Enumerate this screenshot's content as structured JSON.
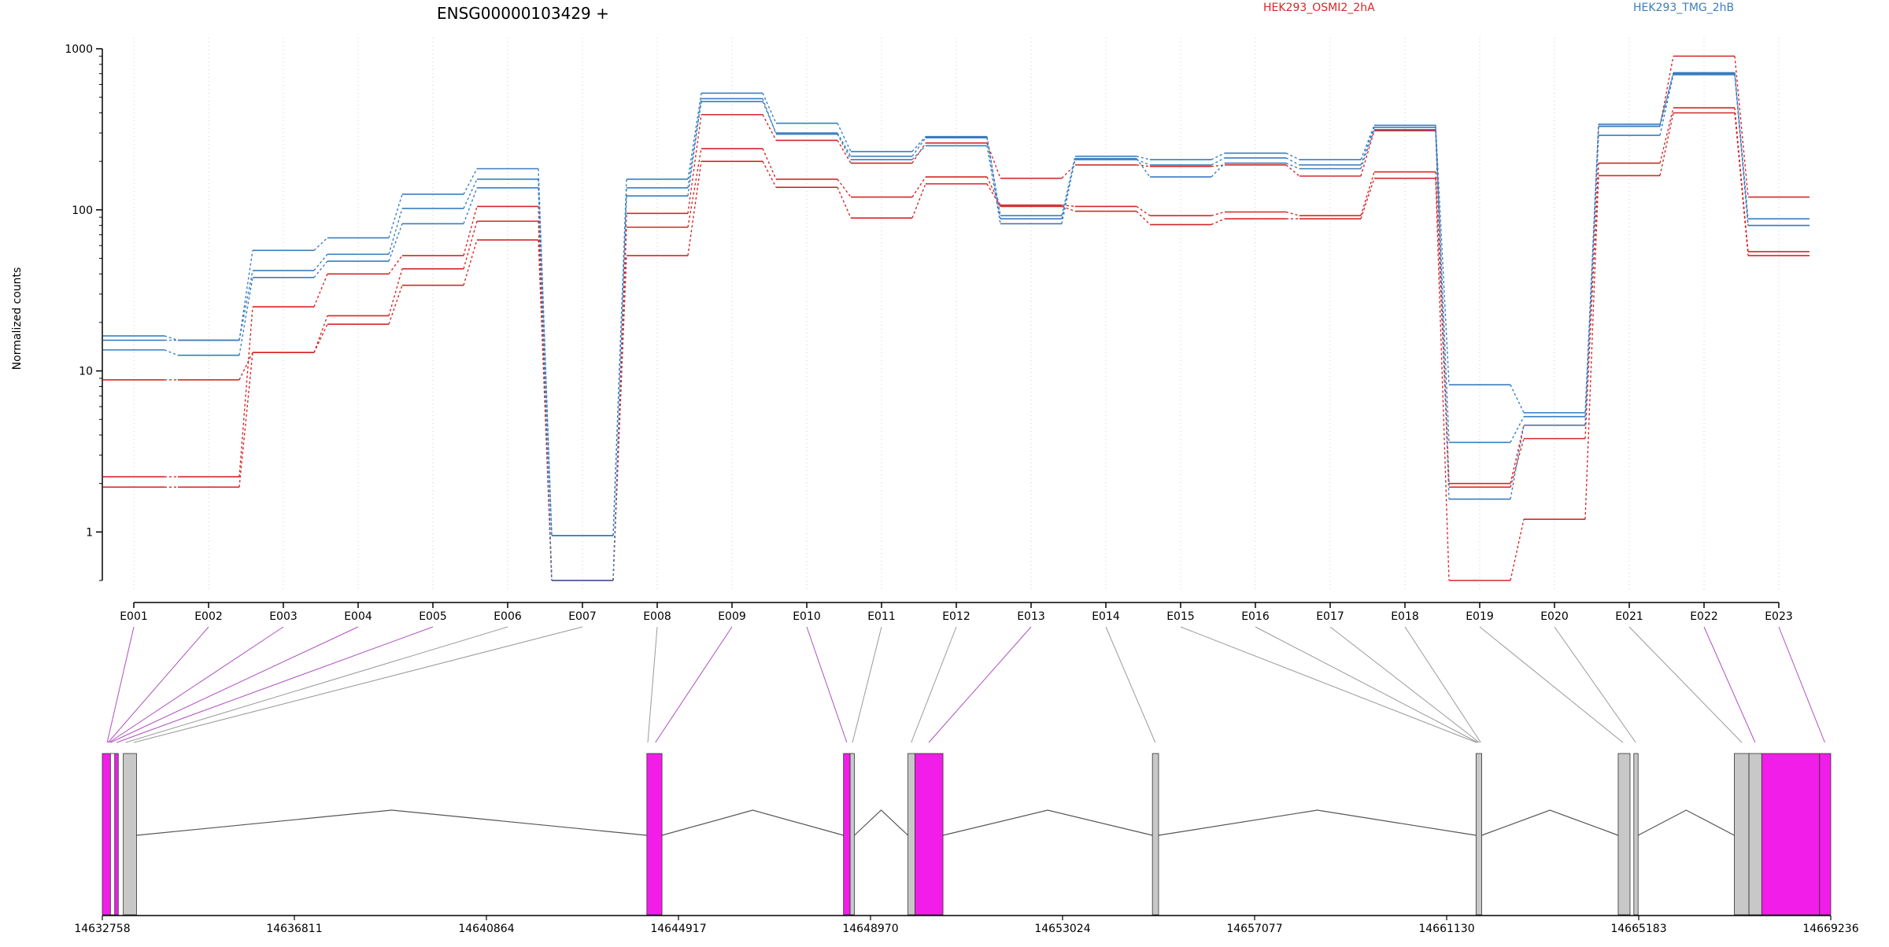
{
  "chart_data": {
    "type": "line",
    "title": "ENSG00000103429 +",
    "ylabel": "Normalized counts",
    "xlabel": "",
    "y_scale": "log",
    "ylim": [
      0.5,
      1000
    ],
    "y_ticks": [
      "1",
      "10",
      "100",
      "1000"
    ],
    "grid": "vertical dotted",
    "legend_position": "top-right",
    "legend": [
      {
        "name": "HEK293_OSMI2_2hA",
        "color": "#d62728"
      },
      {
        "name": "HEK293_TMG_2hB",
        "color": "#3a7dbf"
      }
    ],
    "categories": [
      "E001",
      "E002",
      "E003",
      "E004",
      "E005",
      "E006",
      "E007",
      "E008",
      "E009",
      "E010",
      "E011",
      "E012",
      "E013",
      "E014",
      "E015",
      "E016",
      "E017",
      "E018",
      "E019",
      "E020",
      "E021",
      "E022",
      "E023"
    ],
    "series": [
      {
        "group": "red",
        "values": [
          8.8,
          8.8,
          13,
          22,
          43,
          85,
          0.5,
          78,
          240,
          155,
          120,
          160,
          107,
          105,
          92,
          97,
          92,
          172,
          1.9,
          3.8,
          195,
          430,
          55
        ]
      },
      {
        "group": "red",
        "values": [
          2.2,
          2.2,
          25,
          40,
          52,
          105,
          0.5,
          95,
          390,
          270,
          195,
          260,
          157,
          190,
          186,
          190,
          162,
          310,
          2.0,
          4.6,
          330,
          900,
          120
        ]
      },
      {
        "group": "red",
        "values": [
          1.9,
          1.9,
          13,
          19.5,
          34,
          65,
          0.5,
          52,
          200,
          138,
          89,
          145,
          105,
          98,
          81,
          88,
          88,
          157,
          0.5,
          1.2,
          163,
          400,
          52
        ]
      },
      {
        "group": "blue",
        "values": [
          16.5,
          15.5,
          56,
          67,
          125,
          180,
          0.95,
          155,
          530,
          345,
          230,
          285,
          92,
          215,
          205,
          225,
          205,
          335,
          8.2,
          5.5,
          340,
          710,
          88
        ]
      },
      {
        "group": "blue",
        "values": [
          15.5,
          15.5,
          42,
          53,
          102,
          155,
          0.95,
          137,
          470,
          300,
          215,
          280,
          88,
          205,
          190,
          210,
          190,
          325,
          3.6,
          5.2,
          330,
          700,
          80
        ]
      },
      {
        "group": "blue",
        "values": [
          13.5,
          12.5,
          38,
          48,
          82,
          137,
          0.5,
          122,
          490,
          295,
          205,
          250,
          82,
          208,
          160,
          195,
          180,
          315,
          1.6,
          4.6,
          290,
          690,
          80
        ]
      }
    ],
    "genomic_axis": {
      "ticks": [
        "14632758",
        "14636811",
        "14640864",
        "14644917",
        "14648970",
        "14653024",
        "14657077",
        "14661130",
        "14665183",
        "14669236"
      ],
      "start": 14632758,
      "end": 14669236
    },
    "gene_model": {
      "exons": [
        {
          "start": 14632758,
          "end": 14632930,
          "color": "magenta"
        },
        {
          "start": 14632930,
          "end": 14633020,
          "color": "white"
        },
        {
          "start": 14633020,
          "end": 14633095,
          "color": "magenta"
        },
        {
          "start": 14633200,
          "end": 14633480,
          "color": "gray"
        },
        {
          "start": 14644250,
          "end": 14644570,
          "color": "magenta"
        },
        {
          "start": 14648400,
          "end": 14648540,
          "color": "magenta"
        },
        {
          "start": 14648540,
          "end": 14648630,
          "color": "gray"
        },
        {
          "start": 14649760,
          "end": 14649910,
          "color": "gray"
        },
        {
          "start": 14649910,
          "end": 14650500,
          "color": "magenta"
        },
        {
          "start": 14654920,
          "end": 14655050,
          "color": "gray"
        },
        {
          "start": 14661750,
          "end": 14661870,
          "color": "gray"
        },
        {
          "start": 14664750,
          "end": 14665000,
          "color": "gray"
        },
        {
          "start": 14665080,
          "end": 14665170,
          "color": "gray"
        },
        {
          "start": 14667200,
          "end": 14667510,
          "color": "gray"
        },
        {
          "start": 14667510,
          "end": 14667780,
          "color": "gray"
        },
        {
          "start": 14667780,
          "end": 14669000,
          "color": "magenta"
        },
        {
          "start": 14669000,
          "end": 14669236,
          "color": "magenta"
        }
      ],
      "introns": [
        {
          "from": 14633480,
          "to": 14644250
        },
        {
          "from": 14644570,
          "to": 14648400
        },
        {
          "from": 14648630,
          "to": 14649760
        },
        {
          "from": 14650500,
          "to": 14654920
        },
        {
          "from": 14655050,
          "to": 14661750
        },
        {
          "from": 14661870,
          "to": 14664750
        },
        {
          "from": 14665170,
          "to": 14667200
        }
      ],
      "connectors": [
        {
          "exon": "E001",
          "pos": 14632860,
          "color": "purple"
        },
        {
          "exon": "E002",
          "pos": 14632880,
          "color": "purple"
        },
        {
          "exon": "E003",
          "pos": 14632900,
          "color": "purple"
        },
        {
          "exon": "E004",
          "pos": 14632930,
          "color": "purple"
        },
        {
          "exon": "E005",
          "pos": 14633060,
          "color": "purple"
        },
        {
          "exon": "E006",
          "pos": 14633250,
          "color": "gray"
        },
        {
          "exon": "E007",
          "pos": 14633420,
          "color": "gray"
        },
        {
          "exon": "E008",
          "pos": 14644270,
          "color": "gray"
        },
        {
          "exon": "E009",
          "pos": 14644430,
          "color": "purple"
        },
        {
          "exon": "E010",
          "pos": 14648470,
          "color": "purple"
        },
        {
          "exon": "E011",
          "pos": 14648590,
          "color": "gray"
        },
        {
          "exon": "E012",
          "pos": 14649830,
          "color": "gray"
        },
        {
          "exon": "E013",
          "pos": 14650200,
          "color": "purple"
        },
        {
          "exon": "E014",
          "pos": 14654980,
          "color": "gray"
        },
        {
          "exon": "E015",
          "pos": 14661760,
          "color": "gray"
        },
        {
          "exon": "E016",
          "pos": 14661790,
          "color": "gray"
        },
        {
          "exon": "E017",
          "pos": 14661820,
          "color": "gray"
        },
        {
          "exon": "E018",
          "pos": 14661850,
          "color": "gray"
        },
        {
          "exon": "E019",
          "pos": 14664850,
          "color": "gray"
        },
        {
          "exon": "E020",
          "pos": 14665120,
          "color": "gray"
        },
        {
          "exon": "E021",
          "pos": 14667360,
          "color": "gray"
        },
        {
          "exon": "E022",
          "pos": 14667640,
          "color": "purple"
        },
        {
          "exon": "E023",
          "pos": 14669110,
          "color": "purple"
        }
      ]
    }
  },
  "colors": {
    "red": "#d62728",
    "blue": "#3a7dbf",
    "magenta": "#f21de8",
    "gray": "#c8c8c8",
    "purple": "#b04fc0",
    "connector_gray": "#9a9a9a"
  }
}
